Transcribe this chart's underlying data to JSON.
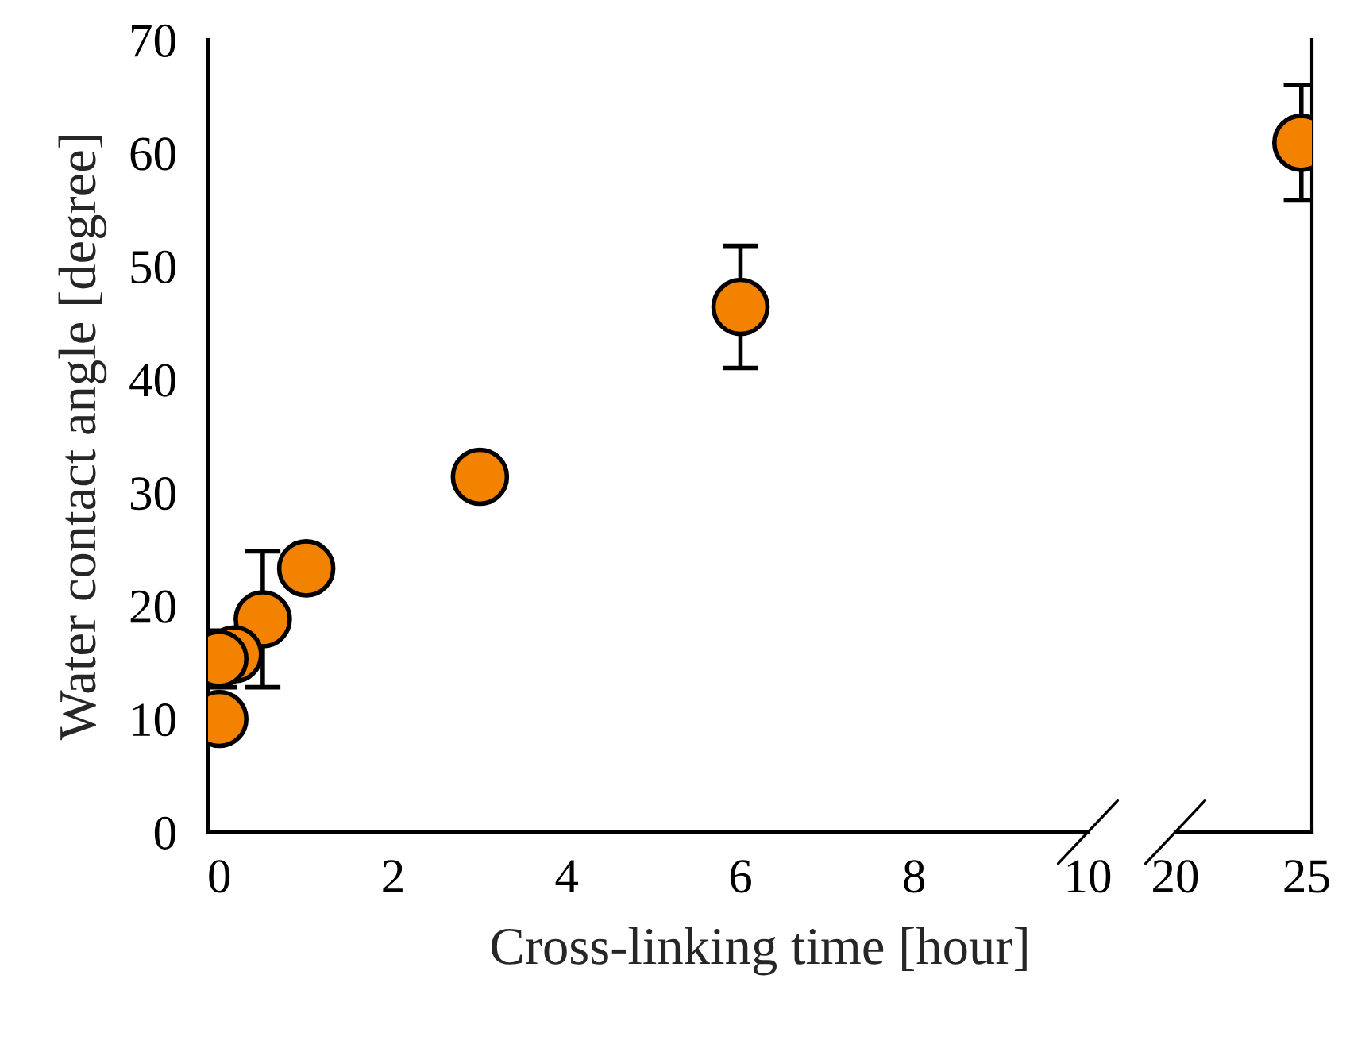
{
  "chart_data": [
    {
      "type": "scatter",
      "xlabel": "Cross-linking time [hour]",
      "ylabel": "Water contact angle [degree]",
      "xlim": [
        -0.13,
        10
      ],
      "xticks": [
        0,
        2,
        4,
        6,
        8,
        10
      ],
      "ylim": [
        0,
        70
      ],
      "yticks": [
        0,
        10,
        20,
        30,
        40,
        50,
        60,
        70
      ],
      "marker": "circle",
      "grid": false,
      "series": [
        {
          "color": "#f38200",
          "x": [
            0,
            0,
            0.17,
            0.5,
            1,
            3,
            6
          ],
          "values": [
            10,
            15.3,
            15.7,
            18.8,
            23.3,
            31.4,
            46.4
          ],
          "errors": [
            null,
            2.5,
            null,
            6,
            null,
            null,
            5.4
          ]
        }
      ]
    },
    {
      "type": "scatter",
      "xlim": [
        20,
        25.2
      ],
      "xticks": [
        20,
        25
      ],
      "ylim": [
        0,
        70
      ],
      "tick_labels": "x",
      "marker": "circle",
      "grid": false,
      "series": [
        {
          "color": "#f38200",
          "x": [
            24.8
          ],
          "values": [
            60.9
          ],
          "errors": [
            5.1
          ]
        }
      ]
    }
  ]
}
